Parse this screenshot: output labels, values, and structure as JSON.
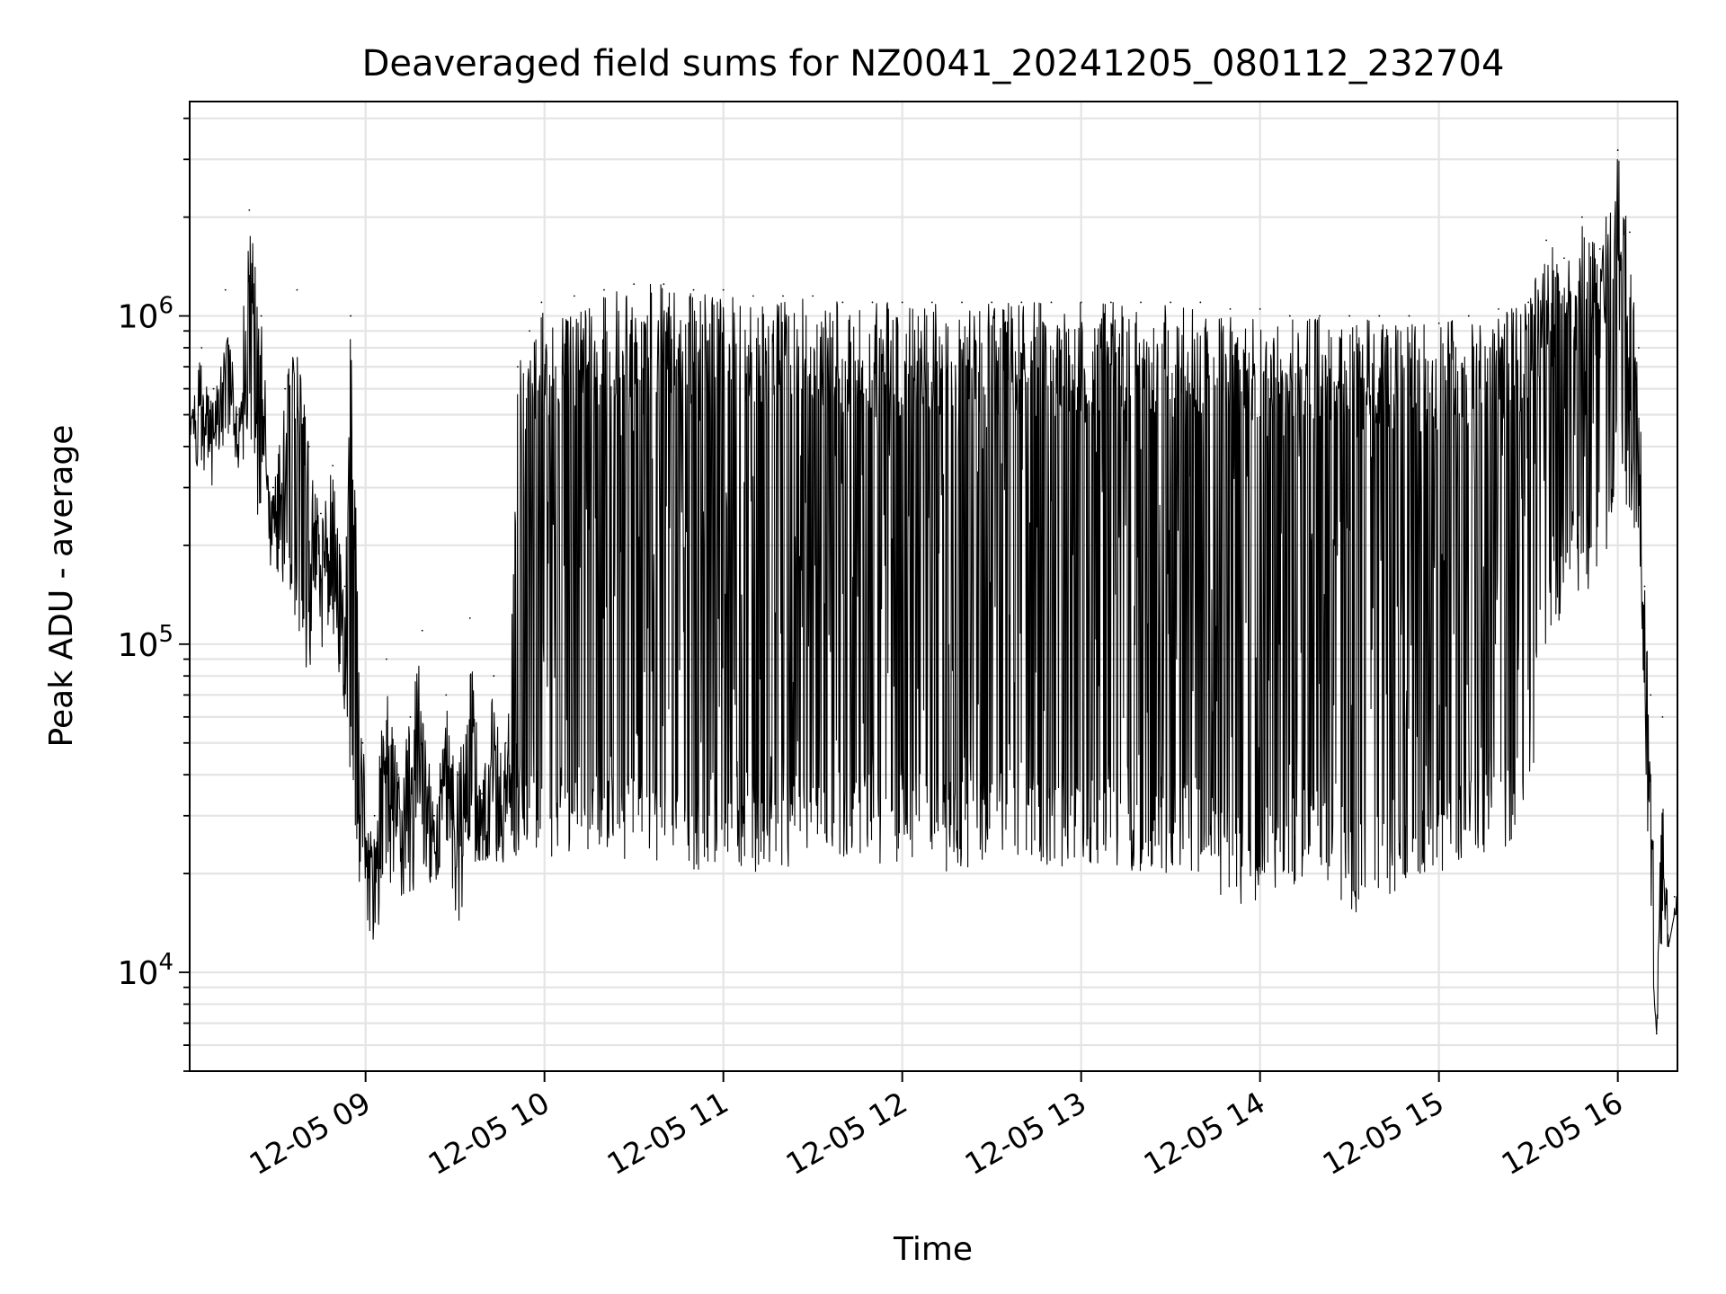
{
  "chart_data": {
    "type": "line",
    "title": "Deaveraged field sums for NZ0041_20241205_080112_232704",
    "xlabel": "Time",
    "ylabel": "Peak ADU - average",
    "y_scale": "log",
    "ylim": [
      5000,
      4500000
    ],
    "xlim": [
      "2024-12-05 08:01",
      "2024-12-05 16:20"
    ],
    "grid": true,
    "x_ticks": [
      {
        "t": "2024-12-05 09:00",
        "label": "12-05 09"
      },
      {
        "t": "2024-12-05 10:00",
        "label": "12-05 10"
      },
      {
        "t": "2024-12-05 11:00",
        "label": "12-05 11"
      },
      {
        "t": "2024-12-05 12:00",
        "label": "12-05 12"
      },
      {
        "t": "2024-12-05 13:00",
        "label": "12-05 13"
      },
      {
        "t": "2024-12-05 14:00",
        "label": "12-05 14"
      },
      {
        "t": "2024-12-05 15:00",
        "label": "12-05 15"
      },
      {
        "t": "2024-12-05 16:00",
        "label": "12-05 16"
      }
    ],
    "y_ticks": [
      {
        "value": 10000,
        "base": "10",
        "exp": "4"
      },
      {
        "value": 100000,
        "base": "10",
        "exp": "5"
      },
      {
        "value": 1000000,
        "base": "10",
        "exp": "6"
      }
    ],
    "series": [
      {
        "color": "#000000",
        "x": [
          "08:01",
          "08:05",
          "08:09",
          "08:13",
          "08:17",
          "08:21",
          "08:25",
          "08:29",
          "08:33",
          "08:37",
          "08:41",
          "08:45",
          "08:49",
          "08:53",
          "08:55",
          "08:59",
          "09:03",
          "09:07",
          "09:11",
          "09:15",
          "09:19",
          "09:23",
          "09:27",
          "09:31",
          "09:35",
          "09:39",
          "09:43",
          "09:47",
          "09:51",
          "09:55",
          "09:59",
          "10:10",
          "10:20",
          "10:30",
          "10:40",
          "10:50",
          "11:00",
          "11:10",
          "11:20",
          "11:30",
          "11:40",
          "11:50",
          "12:00",
          "12:10",
          "12:20",
          "12:30",
          "12:40",
          "12:50",
          "13:00",
          "13:10",
          "13:20",
          "13:30",
          "13:40",
          "13:50",
          "14:00",
          "14:10",
          "14:20",
          "14:30",
          "14:40",
          "14:50",
          "15:00",
          "15:10",
          "15:20",
          "15:30",
          "15:36",
          "15:42",
          "15:48",
          "15:54",
          "16:00",
          "16:04",
          "16:07",
          "16:09",
          "16:11",
          "16:13",
          "16:15",
          "16:17",
          "16:19"
        ],
        "y": [
          450000,
          800000,
          600000,
          1200000,
          500000,
          2100000,
          1000000,
          300000,
          600000,
          1200000,
          400000,
          250000,
          350000,
          150000,
          1000000,
          50000,
          30000,
          90000,
          40000,
          60000,
          110000,
          30000,
          70000,
          40000,
          120000,
          35000,
          80000,
          50000,
          700000,
          900000,
          1100000,
          1150000,
          1200000,
          1250000,
          1250000,
          1200000,
          1200000,
          1150000,
          1150000,
          1150000,
          1100000,
          1100000,
          1100000,
          1100000,
          1100000,
          1100000,
          1100000,
          1100000,
          1100000,
          1100000,
          1100000,
          1100000,
          1100000,
          1050000,
          1050000,
          1000000,
          1000000,
          1000000,
          1000000,
          1000000,
          950000,
          1000000,
          1050000,
          1100000,
          1700000,
          1500000,
          2000000,
          1600000,
          3200000,
          1800000,
          800000,
          150000,
          70000,
          6500,
          60000,
          12000,
          17000
        ],
        "low": [
          450000,
          300000,
          300000,
          400000,
          300000,
          400000,
          200000,
          150000,
          150000,
          100000,
          80000,
          100000,
          80000,
          60000,
          30000,
          15000,
          12000,
          17000,
          16000,
          15000,
          20000,
          18000,
          25000,
          13000,
          20000,
          22000,
          22000,
          20000,
          22000,
          25000,
          20000,
          22000,
          22000,
          20000,
          22000,
          20000,
          22000,
          20000,
          20000,
          22000,
          22000,
          20000,
          22000,
          20000,
          20000,
          22000,
          22000,
          20000,
          22000,
          20000,
          20000,
          20000,
          20000,
          16000,
          16000,
          18000,
          20000,
          15000,
          15000,
          20000,
          20000,
          20000,
          22000,
          30000,
          100000,
          120000,
          150000,
          130000,
          250000,
          200000,
          200000,
          60000,
          12000,
          6500,
          12000,
          12000,
          15000
        ]
      }
    ]
  }
}
